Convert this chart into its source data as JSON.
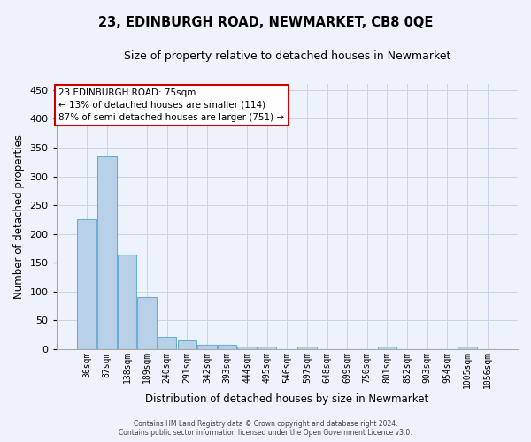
{
  "title": "23, EDINBURGH ROAD, NEWMARKET, CB8 0QE",
  "subtitle": "Size of property relative to detached houses in Newmarket",
  "xlabel": "Distribution of detached houses by size in Newmarket",
  "ylabel": "Number of detached properties",
  "bar_values": [
    225,
    335,
    165,
    90,
    21,
    16,
    7,
    7,
    4,
    4,
    0,
    4,
    0,
    0,
    0,
    4,
    0,
    0,
    0,
    4,
    0
  ],
  "x_labels": [
    "36sqm",
    "87sqm",
    "138sqm",
    "189sqm",
    "240sqm",
    "291sqm",
    "342sqm",
    "393sqm",
    "444sqm",
    "495sqm",
    "546sqm",
    "597sqm",
    "648sqm",
    "699sqm",
    "750sqm",
    "801sqm",
    "852sqm",
    "903sqm",
    "954sqm",
    "1005sqm",
    "1056sqm"
  ],
  "bar_color": "#b8d0e8",
  "bar_edge_color": "#6baed6",
  "background_color": "#eef2fa",
  "grid_color": "#c8d4e8",
  "ylim": [
    0,
    460
  ],
  "yticks": [
    0,
    50,
    100,
    150,
    200,
    250,
    300,
    350,
    400,
    450
  ],
  "annotation_text": "23 EDINBURGH ROAD: 75sqm\n← 13% of detached houses are smaller (114)\n87% of semi-detached houses are larger (751) →",
  "annotation_box_color": "#ffffff",
  "annotation_border_color": "#cc0000",
  "footer_line1": "Contains HM Land Registry data © Crown copyright and database right 2024.",
  "footer_line2": "Contains public sector information licensed under the Open Government Licence v3.0.",
  "title_fontsize": 10.5,
  "subtitle_fontsize": 9,
  "tick_fontsize": 7,
  "ylabel_fontsize": 8.5,
  "xlabel_fontsize": 8.5,
  "annotation_fontsize": 7.5,
  "footer_fontsize": 5.5
}
